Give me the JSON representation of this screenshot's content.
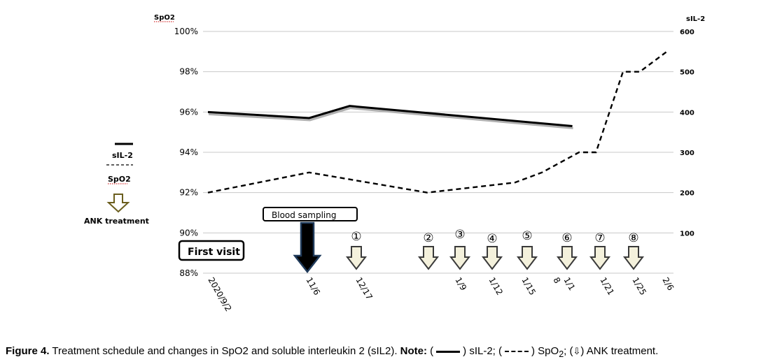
{
  "chart_data": {
    "type": "line",
    "x": [
      "2020/9/2",
      "11/6",
      "12/17",
      "1/9",
      "1/12",
      "1/15",
      "8",
      "1/1",
      "1/21",
      "1/25",
      "2/6"
    ],
    "left_axis": {
      "title": "SpO2",
      "ticks": [
        "100%",
        "98%",
        "96%",
        "94%",
        "92%",
        "90%",
        "88%"
      ],
      "range": [
        88,
        100
      ]
    },
    "right_axis": {
      "title": "sIL-2",
      "ticks": [
        "600",
        "500",
        "400",
        "300",
        "200",
        "100"
      ],
      "range": [
        0,
        600
      ]
    },
    "grid": true,
    "series": [
      {
        "name": "sIL-2",
        "axis": "right",
        "style": "solid",
        "points": [
          [
            0,
            400
          ],
          [
            3,
            385
          ],
          [
            4.2,
            415
          ],
          [
            10.8,
            365
          ]
        ]
      },
      {
        "name": "SpO2",
        "axis": "left",
        "style": "dashed",
        "points": [
          [
            0,
            92
          ],
          [
            3,
            93
          ],
          [
            6.5,
            92
          ],
          [
            9.1,
            92.5
          ],
          [
            9.9,
            93
          ],
          [
            11,
            94
          ],
          [
            11.5,
            94
          ],
          [
            12.3,
            98
          ],
          [
            12.8,
            98
          ],
          [
            13.6,
            99
          ]
        ]
      }
    ],
    "legend": {
      "items": [
        {
          "label": "sIL-2",
          "style": "solid"
        },
        {
          "label": "SpO2",
          "style": "dashed"
        },
        {
          "label": "ANK treatment",
          "style": "arrow"
        }
      ]
    },
    "annotations": {
      "first_visit": "First visit",
      "blood_sampling": "Blood  sampling",
      "treatments": [
        "①",
        "②",
        "③",
        "④",
        "⑤",
        "⑥",
        "⑦",
        "⑧"
      ]
    }
  },
  "caption": {
    "figure_label": "Figure 4.",
    "text": " Treatment schedule and changes in SpO2 and soluble interleukin 2 (sIL2). ",
    "note_label": "Note:",
    "paren_open": " (",
    "sil2_text": ") sIL-2; (",
    "spo2_text": ") SpO",
    "spo2_sub": "2",
    "sep_text": "; (",
    "arrow_glyph": "⇩",
    "ank_text": ") ANK treatment."
  }
}
